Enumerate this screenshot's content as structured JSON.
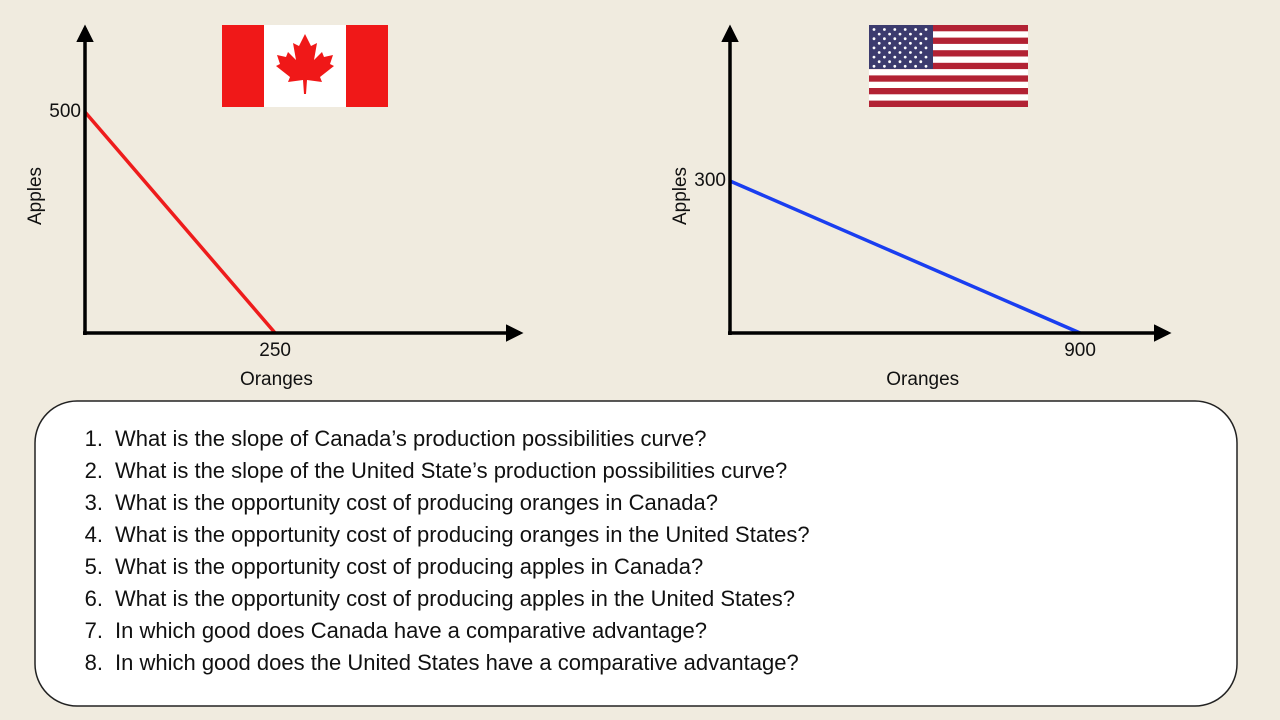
{
  "chart_data": [
    {
      "type": "line",
      "x_label": "Oranges",
      "y_label": "Apples",
      "series": [
        {
          "color": "#ee1c1c",
          "x": [
            0,
            250
          ],
          "values": [
            500,
            0
          ]
        }
      ],
      "xlim": [
        0,
        572
      ],
      "ylim": [
        0,
        690
      ],
      "xticks": [
        250
      ],
      "yticks": [
        500
      ]
    },
    {
      "type": "line",
      "x_label": "Oranges",
      "y_label": "Apples",
      "series": [
        {
          "color": "#1a3ef0",
          "x": [
            0,
            900
          ],
          "values": [
            300,
            0
          ]
        }
      ],
      "xlim": [
        0,
        1126
      ],
      "ylim": [
        0,
        602
      ],
      "xticks": [
        900
      ],
      "yticks": [
        300
      ]
    }
  ],
  "questions": [
    {
      "number": "1.",
      "text": "What is the slope of Canada’s production possibilities curve?"
    },
    {
      "number": "2.",
      "text": "What is the slope of the United State’s production possibilities curve?"
    },
    {
      "number": "3.",
      "text": "What is the opportunity cost of producing oranges in Canada?"
    },
    {
      "number": "4.",
      "text": "What is the opportunity cost of producing oranges in the United States?"
    },
    {
      "number": "5.",
      "text": "What is the opportunity cost of producing apples in Canada?"
    },
    {
      "number": "6.",
      "text": "What is the opportunity cost of producing apples in the United States?"
    },
    {
      "number": "7.",
      "text": "In which good does Canada have a comparative advantage?"
    },
    {
      "number": "8.",
      "text": "In which good does the United States have a comparative advantage?"
    }
  ]
}
